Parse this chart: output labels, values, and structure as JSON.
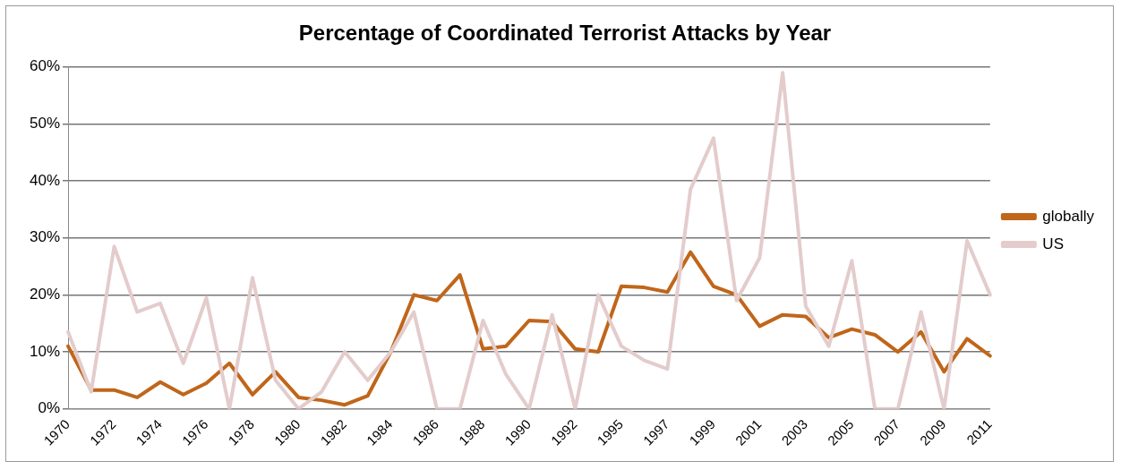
{
  "chart_data": {
    "type": "line",
    "title": "Percentage of Coordinated Terrorist Attacks by Year",
    "categories": [
      "1970",
      null,
      "1972",
      null,
      "1974",
      null,
      "1976",
      null,
      "1978",
      null,
      "1980",
      null,
      "1982",
      null,
      "1984",
      null,
      "1986",
      null,
      "1988",
      null,
      "1990",
      null,
      "1992",
      null,
      "1995",
      null,
      "1997",
      null,
      "1999",
      null,
      "2001",
      null,
      "2003",
      null,
      "2005",
      null,
      "2007",
      null,
      "2009",
      null,
      "2011"
    ],
    "series": [
      {
        "name": "globally",
        "color": "#c0661a",
        "values": [
          11,
          3.3,
          3.3,
          2,
          4.7,
          2.5,
          4.5,
          8,
          2.5,
          6.5,
          2,
          1.5,
          0.7,
          2.3,
          10,
          20,
          19,
          23.5,
          10.5,
          11,
          15.5,
          15.3,
          10.5,
          10,
          21.5,
          21.3,
          20.5,
          27.5,
          21.5,
          20,
          14.5,
          16.5,
          16.2,
          12.5,
          14,
          13,
          10,
          13.5,
          6.5,
          12.3,
          9.3
        ]
      },
      {
        "name": "US",
        "color": "#e4cccc",
        "values": [
          13.5,
          3,
          28.5,
          17,
          18.5,
          8,
          19.5,
          0,
          23,
          5,
          0,
          3,
          10,
          5,
          10,
          17,
          0,
          0,
          15.5,
          6,
          0,
          16.5,
          0,
          20,
          11,
          8.5,
          7,
          38.5,
          47.5,
          19,
          26.5,
          59,
          18,
          11,
          26,
          0,
          0,
          17,
          0,
          29.5,
          20
        ]
      }
    ],
    "ylim": [
      0,
      60
    ],
    "yticks": [
      {
        "value": 0,
        "label": "0%"
      },
      {
        "value": 10,
        "label": "10%"
      },
      {
        "value": 20,
        "label": "20%"
      },
      {
        "value": 30,
        "label": "30%"
      },
      {
        "value": 40,
        "label": "40%"
      },
      {
        "value": 50,
        "label": "50%"
      },
      {
        "value": 60,
        "label": "60%"
      }
    ],
    "grid": "y",
    "legend": "right",
    "marker": "none",
    "line_style": "solid"
  }
}
